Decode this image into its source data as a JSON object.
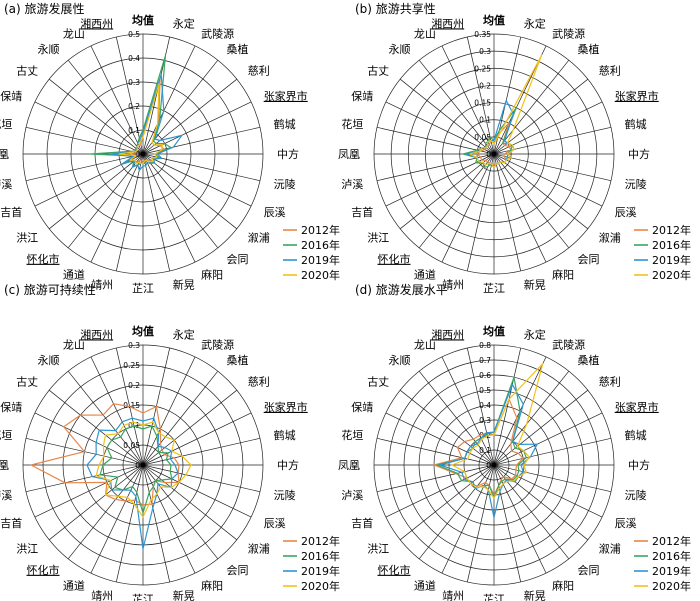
{
  "chart_data": [
    {
      "type": "radar",
      "title": "(a) 旅游发展性",
      "rlim": [
        0,
        0.5
      ],
      "rticks": [
        0,
        0.1,
        0.2,
        0.3,
        0.4,
        0.5
      ],
      "categories": [
        "均值",
        "永定",
        "武陵源",
        "桑植",
        "慈利",
        "张家界市",
        "鹤城",
        "中方",
        "沅陵",
        "辰溪",
        "溆浦",
        "会同",
        "麻阳",
        "新晃",
        "芷江",
        "靖州",
        "通道",
        "怀化市",
        "洪江",
        "吉首",
        "泸溪",
        "凤凰",
        "花垣",
        "保靖",
        "古丈",
        "永顺",
        "龙山",
        "湘西州"
      ],
      "series": [
        {
          "name": "2012年",
          "color": "#e8874a",
          "values": [
            0.08,
            0.32,
            0.15,
            0.06,
            0.06,
            0.08,
            0.09,
            0.05,
            0.06,
            0.04,
            0.05,
            0.03,
            0.03,
            0.03,
            0.04,
            0.03,
            0.03,
            0.05,
            0.04,
            0.06,
            0.03,
            0.05,
            0.03,
            0.03,
            0.03,
            0.04,
            0.04,
            0.04
          ]
        },
        {
          "name": "2016年",
          "color": "#3aa65e",
          "values": [
            0.1,
            0.42,
            0.16,
            0.07,
            0.07,
            0.1,
            0.12,
            0.05,
            0.07,
            0.05,
            0.06,
            0.04,
            0.03,
            0.04,
            0.04,
            0.04,
            0.05,
            0.07,
            0.05,
            0.08,
            0.04,
            0.22,
            0.05,
            0.03,
            0.04,
            0.04,
            0.05,
            0.07
          ]
        },
        {
          "name": "2019年",
          "color": "#2e95d3",
          "values": [
            0.09,
            0.34,
            0.2,
            0.08,
            0.09,
            0.18,
            0.13,
            0.06,
            0.08,
            0.05,
            0.06,
            0.05,
            0.04,
            0.05,
            0.05,
            0.07,
            0.05,
            0.07,
            0.04,
            0.1,
            0.04,
            0.14,
            0.04,
            0.03,
            0.04,
            0.04,
            0.05,
            0.06
          ]
        },
        {
          "name": "2020年",
          "color": "#f1c21b",
          "values": [
            0.07,
            0.3,
            0.14,
            0.06,
            0.06,
            0.09,
            0.08,
            0.05,
            0.06,
            0.04,
            0.05,
            0.04,
            0.03,
            0.03,
            0.04,
            0.04,
            0.04,
            0.05,
            0.04,
            0.06,
            0.03,
            0.1,
            0.04,
            0.03,
            0.03,
            0.04,
            0.04,
            0.05
          ]
        }
      ]
    },
    {
      "type": "radar",
      "title": "(b) 旅游共享性",
      "rlim": [
        0,
        0.35
      ],
      "rticks": [
        0,
        0.05,
        0.1,
        0.15,
        0.2,
        0.25,
        0.3,
        0.35
      ],
      "categories": [
        "均值",
        "永定",
        "武陵源",
        "桑植",
        "慈利",
        "张家界市",
        "鹤城",
        "中方",
        "沅陵",
        "辰溪",
        "溆浦",
        "会同",
        "麻阳",
        "新晃",
        "芷江",
        "靖州",
        "通道",
        "怀化市",
        "洪江",
        "吉首",
        "泸溪",
        "凤凰",
        "花垣",
        "保靖",
        "古丈",
        "永顺",
        "龙山",
        "湘西州"
      ],
      "series": [
        {
          "name": "2012年",
          "color": "#e8874a",
          "values": [
            0.03,
            0.06,
            0.1,
            0.04,
            0.04,
            0.05,
            0.05,
            0.03,
            0.03,
            0.04,
            0.04,
            0.03,
            0.03,
            0.03,
            0.03,
            0.03,
            0.03,
            0.03,
            0.03,
            0.04,
            0.04,
            0.05,
            0.04,
            0.03,
            0.03,
            0.03,
            0.03,
            0.04
          ]
        },
        {
          "name": "2016年",
          "color": "#3aa65e",
          "values": [
            0.04,
            0.07,
            0.15,
            0.04,
            0.05,
            0.06,
            0.05,
            0.04,
            0.04,
            0.04,
            0.04,
            0.03,
            0.03,
            0.03,
            0.04,
            0.03,
            0.04,
            0.05,
            0.04,
            0.06,
            0.05,
            0.09,
            0.05,
            0.04,
            0.03,
            0.04,
            0.04,
            0.05
          ]
        },
        {
          "name": "2019年",
          "color": "#2e95d3",
          "values": [
            0.04,
            0.16,
            0.13,
            0.05,
            0.05,
            0.06,
            0.06,
            0.04,
            0.04,
            0.04,
            0.04,
            0.03,
            0.03,
            0.03,
            0.04,
            0.03,
            0.03,
            0.04,
            0.04,
            0.05,
            0.05,
            0.08,
            0.04,
            0.04,
            0.03,
            0.03,
            0.04,
            0.04
          ]
        },
        {
          "name": "2020年",
          "color": "#f1c21b",
          "values": [
            0.03,
            0.05,
            0.32,
            0.09,
            0.05,
            0.06,
            0.06,
            0.04,
            0.05,
            0.04,
            0.04,
            0.03,
            0.03,
            0.03,
            0.04,
            0.03,
            0.03,
            0.04,
            0.04,
            0.05,
            0.05,
            0.07,
            0.04,
            0.04,
            0.03,
            0.03,
            0.04,
            0.04
          ]
        }
      ]
    },
    {
      "type": "radar",
      "title": "(c) 旅游可持续性",
      "rlim": [
        0,
        0.3
      ],
      "rticks": [
        0,
        0.05,
        0.1,
        0.15,
        0.2,
        0.25,
        0.3
      ],
      "categories": [
        "均值",
        "永定",
        "武陵源",
        "桑植",
        "慈利",
        "张家界市",
        "鹤城",
        "中方",
        "沅陵",
        "辰溪",
        "溆浦",
        "会同",
        "麻阳",
        "新晃",
        "芷江",
        "靖州",
        "通道",
        "怀化市",
        "洪江",
        "吉首",
        "泸溪",
        "凤凰",
        "花垣",
        "保靖",
        "古丈",
        "永顺",
        "龙山",
        "湘西州"
      ],
      "series": [
        {
          "name": "2012年",
          "color": "#e8874a",
          "values": [
            0.13,
            0.15,
            0.1,
            0.07,
            0.06,
            0.06,
            0.08,
            0.09,
            0.09,
            0.1,
            0.07,
            0.05,
            0.06,
            0.1,
            0.1,
            0.09,
            0.1,
            0.11,
            0.12,
            0.1,
            0.2,
            0.28,
            0.15,
            0.22,
            0.2,
            0.16,
            0.17,
            0.15
          ]
        },
        {
          "name": "2016年",
          "color": "#3aa65e",
          "values": [
            0.09,
            0.1,
            0.08,
            0.06,
            0.05,
            0.07,
            0.06,
            0.07,
            0.07,
            0.08,
            0.06,
            0.05,
            0.06,
            0.07,
            0.12,
            0.07,
            0.06,
            0.08,
            0.09,
            0.07,
            0.11,
            0.1,
            0.08,
            0.1,
            0.1,
            0.09,
            0.1,
            0.1
          ]
        },
        {
          "name": "2019年",
          "color": "#2e95d3",
          "values": [
            0.11,
            0.12,
            0.09,
            0.06,
            0.07,
            0.08,
            0.07,
            0.08,
            0.09,
            0.08,
            0.09,
            0.06,
            0.08,
            0.11,
            0.21,
            0.08,
            0.07,
            0.08,
            0.1,
            0.09,
            0.13,
            0.14,
            0.12,
            0.13,
            0.14,
            0.11,
            0.12,
            0.12
          ]
        },
        {
          "name": "2020年",
          "color": "#f1c21b",
          "values": [
            0.1,
            0.11,
            0.09,
            0.09,
            0.1,
            0.08,
            0.1,
            0.12,
            0.11,
            0.1,
            0.09,
            0.07,
            0.08,
            0.09,
            0.13,
            0.1,
            0.09,
            0.1,
            0.12,
            0.09,
            0.12,
            0.11,
            0.1,
            0.11,
            0.12,
            0.1,
            0.11,
            0.11
          ]
        }
      ]
    },
    {
      "type": "radar",
      "title": "(d) 旅游发展水平",
      "rlim": [
        0,
        0.8
      ],
      "rticks": [
        0,
        0.1,
        0.2,
        0.3,
        0.4,
        0.5,
        0.6,
        0.7,
        0.8
      ],
      "categories": [
        "均值",
        "永定",
        "武陵源",
        "桑植",
        "慈利",
        "张家界市",
        "鹤城",
        "中方",
        "沅陵",
        "辰溪",
        "溆浦",
        "会同",
        "麻阳",
        "新晃",
        "芷江",
        "靖州",
        "通道",
        "怀化市",
        "洪江",
        "吉首",
        "泸溪",
        "凤凰",
        "花垣",
        "保靖",
        "古丈",
        "永顺",
        "龙山",
        "湘西州"
      ],
      "series": [
        {
          "name": "2012年",
          "color": "#e8874a",
          "values": [
            0.2,
            0.45,
            0.35,
            0.18,
            0.15,
            0.18,
            0.2,
            0.15,
            0.15,
            0.16,
            0.15,
            0.1,
            0.11,
            0.14,
            0.2,
            0.14,
            0.13,
            0.18,
            0.2,
            0.2,
            0.26,
            0.4,
            0.22,
            0.27,
            0.25,
            0.22,
            0.22,
            0.22
          ]
        },
        {
          "name": "2016年",
          "color": "#3aa65e",
          "values": [
            0.22,
            0.6,
            0.4,
            0.2,
            0.18,
            0.22,
            0.22,
            0.16,
            0.17,
            0.17,
            0.16,
            0.12,
            0.12,
            0.14,
            0.22,
            0.14,
            0.15,
            0.2,
            0.18,
            0.24,
            0.25,
            0.38,
            0.2,
            0.2,
            0.18,
            0.2,
            0.2,
            0.21
          ]
        },
        {
          "name": "2019年",
          "color": "#2e95d3",
          "values": [
            0.22,
            0.55,
            0.45,
            0.2,
            0.22,
            0.32,
            0.25,
            0.18,
            0.2,
            0.18,
            0.18,
            0.13,
            0.14,
            0.18,
            0.35,
            0.17,
            0.15,
            0.2,
            0.18,
            0.22,
            0.22,
            0.36,
            0.2,
            0.2,
            0.2,
            0.18,
            0.2,
            0.22
          ]
        },
        {
          "name": "2020年",
          "color": "#f1c21b",
          "values": [
            0.2,
            0.45,
            0.75,
            0.35,
            0.2,
            0.22,
            0.24,
            0.2,
            0.22,
            0.18,
            0.17,
            0.14,
            0.14,
            0.16,
            0.22,
            0.17,
            0.16,
            0.19,
            0.2,
            0.2,
            0.2,
            0.28,
            0.18,
            0.18,
            0.18,
            0.17,
            0.19,
            0.2
          ]
        }
      ]
    }
  ],
  "bold_labels": [
    "均值"
  ],
  "underlined_labels": [
    "张家界市",
    "怀化市",
    "湘西州"
  ]
}
